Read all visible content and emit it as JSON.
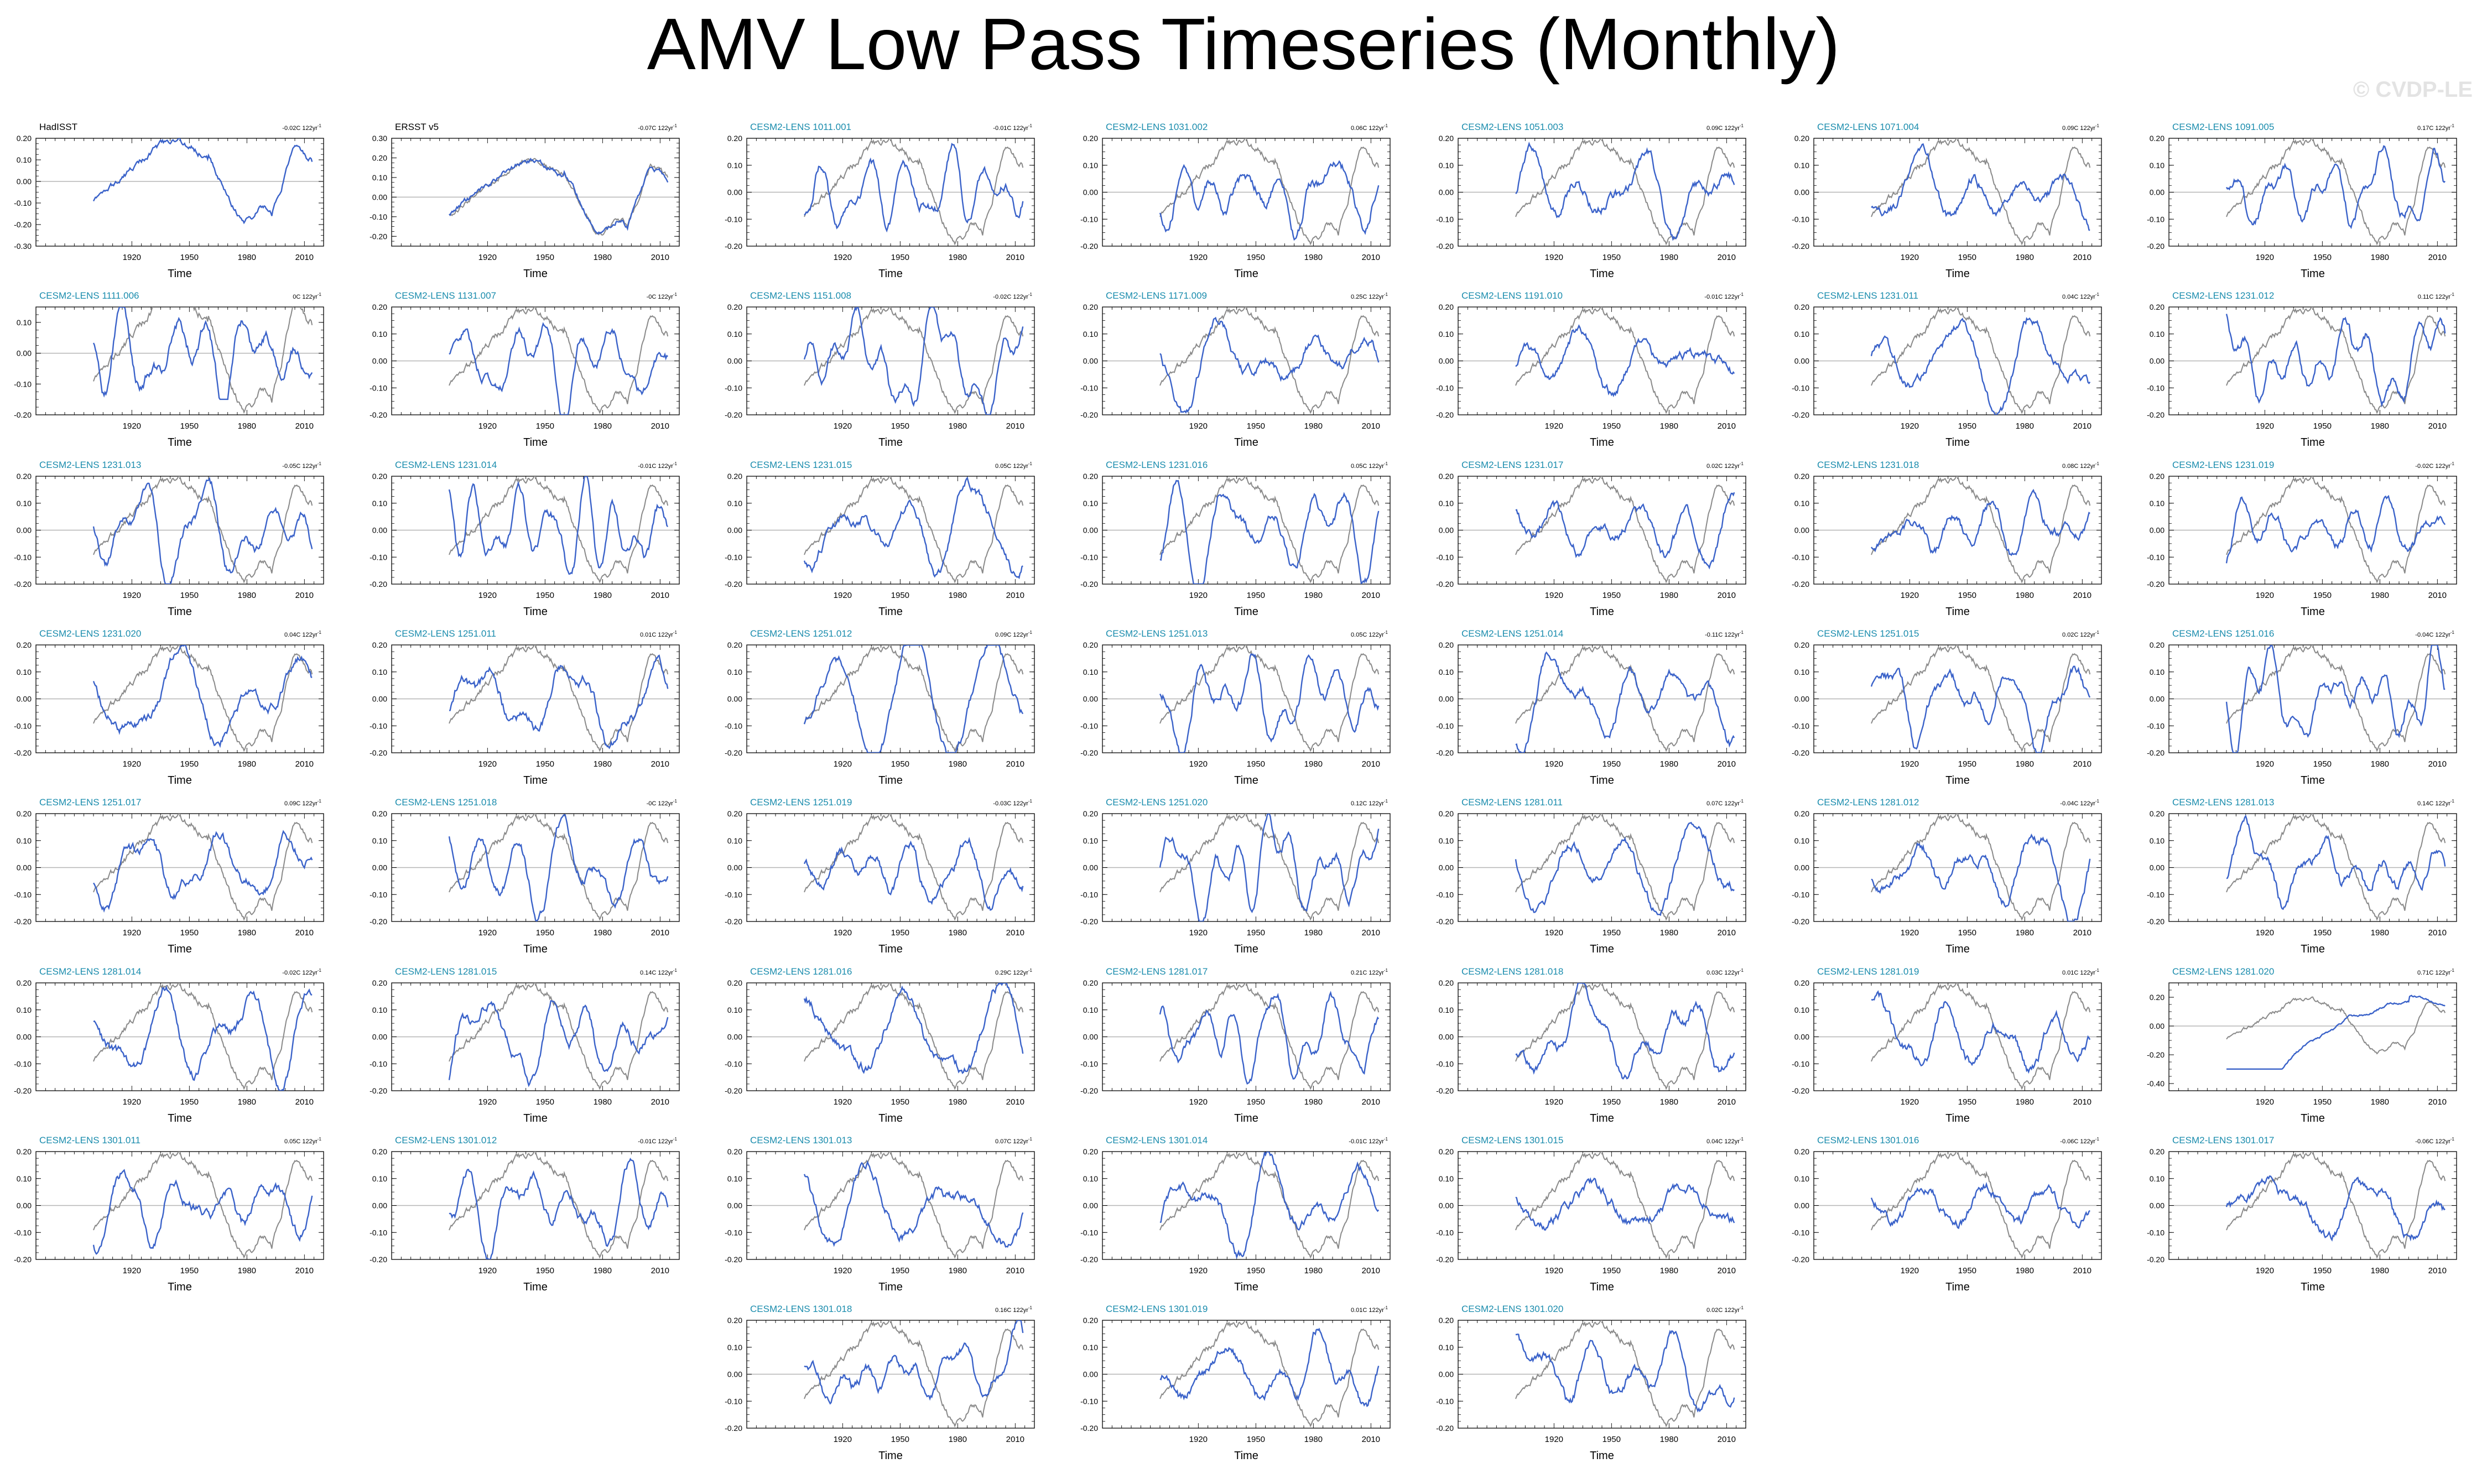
{
  "figure": {
    "title": "AMV Low Pass Timeseries (Monthly)",
    "watermark": "© CVDP-LE",
    "colors": {
      "model": "#3a62c9",
      "observation": "#8a8a8a",
      "title_obs": "#000000",
      "title_model": "#1a8cad",
      "zero_line": "#b5b5b5"
    }
  },
  "chart_data": {
    "type": "line",
    "xlabel": "Time",
    "x_range": [
      1870,
      2020
    ],
    "x_ticks": [
      1920,
      1950,
      1980,
      2010
    ],
    "default_ylim": [
      -0.2,
      0.2
    ],
    "default_yticks": [
      "0.20",
      "0.10",
      "0.00",
      "-0.10",
      "-0.20"
    ],
    "trend_unit": "122yr",
    "panels": [
      {
        "title": "HadISST",
        "trend": "-0.02C",
        "kind": "obs",
        "ylim": [
          -0.3,
          0.2
        ],
        "yticks": [
          "0.20",
          "0.10",
          "0.00",
          "-0.10",
          "-0.20",
          "-0.30"
        ],
        "seed": 0
      },
      {
        "title": "ERSST v5",
        "trend": "-0.07C",
        "kind": "obs",
        "ylim": [
          -0.25,
          0.3
        ],
        "yticks": [
          "0.30",
          "0.20",
          "0.10",
          "0.00",
          "-0.10",
          "-0.20"
        ],
        "seed": 1
      },
      {
        "title": "CESM2-LENS 1011.001",
        "trend": "-0.01C",
        "seed": 2
      },
      {
        "title": "CESM2-LENS 1031.002",
        "trend": "0.06C",
        "seed": 3
      },
      {
        "title": "CESM2-LENS 1051.003",
        "trend": "0.09C",
        "seed": 4
      },
      {
        "title": "CESM2-LENS 1071.004",
        "trend": "0.09C",
        "seed": 5
      },
      {
        "title": "CESM2-LENS 1091.005",
        "trend": "0.17C",
        "seed": 6
      },
      {
        "title": "CESM2-LENS 1111.006",
        "trend": "0C",
        "yticks": [
          "0.10",
          "0.00",
          "-0.10",
          "-0.20"
        ],
        "ylim": [
          -0.2,
          0.15
        ],
        "seed": 7
      },
      {
        "title": "CESM2-LENS 1131.007",
        "trend": "-0C",
        "seed": 8
      },
      {
        "title": "CESM2-LENS 1151.008",
        "trend": "-0.02C",
        "seed": 9
      },
      {
        "title": "CESM2-LENS 1171.009",
        "trend": "0.25C",
        "seed": 10
      },
      {
        "title": "CESM2-LENS 1191.010",
        "trend": "-0.01C",
        "seed": 11
      },
      {
        "title": "CESM2-LENS 1231.011",
        "trend": "0.04C",
        "seed": 12
      },
      {
        "title": "CESM2-LENS 1231.012",
        "trend": "0.11C",
        "seed": 13
      },
      {
        "title": "CESM2-LENS 1231.013",
        "trend": "-0.05C",
        "seed": 14
      },
      {
        "title": "CESM2-LENS 1231.014",
        "trend": "-0.01C",
        "seed": 15
      },
      {
        "title": "CESM2-LENS 1231.015",
        "trend": "0.05C",
        "seed": 16
      },
      {
        "title": "CESM2-LENS 1231.016",
        "trend": "0.05C",
        "seed": 17
      },
      {
        "title": "CESM2-LENS 1231.017",
        "trend": "0.02C",
        "seed": 18
      },
      {
        "title": "CESM2-LENS 1231.018",
        "trend": "0.08C",
        "seed": 19
      },
      {
        "title": "CESM2-LENS 1231.019",
        "trend": "-0.02C",
        "seed": 20
      },
      {
        "title": "CESM2-LENS 1231.020",
        "trend": "0.04C",
        "seed": 21
      },
      {
        "title": "CESM2-LENS 1251.011",
        "trend": "0.01C",
        "seed": 22
      },
      {
        "title": "CESM2-LENS 1251.012",
        "trend": "0.09C",
        "seed": 23
      },
      {
        "title": "CESM2-LENS 1251.013",
        "trend": "0.05C",
        "seed": 24
      },
      {
        "title": "CESM2-LENS 1251.014",
        "trend": "-0.11C",
        "seed": 25
      },
      {
        "title": "CESM2-LENS 1251.015",
        "trend": "0.02C",
        "seed": 26
      },
      {
        "title": "CESM2-LENS 1251.016",
        "trend": "-0.04C",
        "seed": 27
      },
      {
        "title": "CESM2-LENS 1251.017",
        "trend": "0.09C",
        "seed": 28
      },
      {
        "title": "CESM2-LENS 1251.018",
        "trend": "-0C",
        "seed": 29
      },
      {
        "title": "CESM2-LENS 1251.019",
        "trend": "-0.03C",
        "seed": 30
      },
      {
        "title": "CESM2-LENS 1251.020",
        "trend": "0.12C",
        "seed": 31
      },
      {
        "title": "CESM2-LENS 1281.011",
        "trend": "0.07C",
        "seed": 32
      },
      {
        "title": "CESM2-LENS 1281.012",
        "trend": "-0.04C",
        "seed": 33
      },
      {
        "title": "CESM2-LENS 1281.013",
        "trend": "0.14C",
        "seed": 34
      },
      {
        "title": "CESM2-LENS 1281.014",
        "trend": "-0.02C",
        "seed": 35
      },
      {
        "title": "CESM2-LENS 1281.015",
        "trend": "0.14C",
        "seed": 36
      },
      {
        "title": "CESM2-LENS 1281.016",
        "trend": "0.29C",
        "seed": 37
      },
      {
        "title": "CESM2-LENS 1281.017",
        "trend": "0.21C",
        "seed": 38
      },
      {
        "title": "CESM2-LENS 1281.018",
        "trend": "0.03C",
        "seed": 39
      },
      {
        "title": "CESM2-LENS 1281.019",
        "trend": "0.01C",
        "seed": 40
      },
      {
        "title": "CESM2-LENS 1281.020",
        "trend": "0.71C",
        "ylim": [
          -0.45,
          0.3
        ],
        "yticks": [
          "0.20",
          "0.00",
          "-0.20",
          "-0.40"
        ],
        "seed": 41
      },
      {
        "title": "CESM2-LENS 1301.011",
        "trend": "0.05C",
        "seed": 42
      },
      {
        "title": "CESM2-LENS 1301.012",
        "trend": "-0.01C",
        "seed": 43
      },
      {
        "title": "CESM2-LENS 1301.013",
        "trend": "0.07C",
        "seed": 44
      },
      {
        "title": "CESM2-LENS 1301.014",
        "trend": "-0.01C",
        "seed": 45
      },
      {
        "title": "CESM2-LENS 1301.015",
        "trend": "0.04C",
        "seed": 46
      },
      {
        "title": "CESM2-LENS 1301.016",
        "trend": "-0.06C",
        "seed": 47
      },
      {
        "title": "CESM2-LENS 1301.017",
        "trend": "-0.06C",
        "seed": 48
      },
      {
        "title": "CESM2-LENS 1301.018",
        "trend": "0.16C",
        "seed": 49
      },
      {
        "title": "CESM2-LENS 1301.019",
        "trend": "0.01C",
        "seed": 50
      },
      {
        "title": "CESM2-LENS 1301.020",
        "trend": "0.02C",
        "seed": 51
      }
    ]
  }
}
